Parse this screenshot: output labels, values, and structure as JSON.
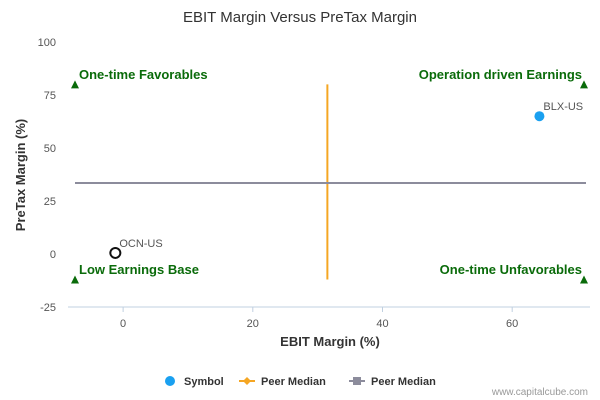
{
  "chart_data": {
    "type": "scatter",
    "title": "EBIT Margin Versus PreTax Margin",
    "xlabel": "EBIT Margin (%)",
    "ylabel": "PreTax Margin (%)",
    "xlim": [
      -8.5,
      72
    ],
    "ylim": [
      -25,
      100
    ],
    "xticks": [
      0,
      20,
      40,
      60
    ],
    "yticks": [
      100,
      75,
      50,
      25,
      0,
      -25
    ],
    "points": [
      {
        "label": "BLX-US",
        "x": 64.2,
        "y": 65,
        "style": "filled",
        "color": "#1aa0f0"
      },
      {
        "label": "OCN-US",
        "x": -1.2,
        "y": 0.5,
        "style": "hollow",
        "color": "#111111"
      }
    ],
    "peer_median_x": 31.5,
    "peer_median_x_range": [
      -12,
      80
    ],
    "peer_median_y": 33.5,
    "peer_median_x_color": "#f5a623",
    "peer_median_y_color": "#8c8c9c",
    "quadrants": {
      "top_left": "One-time Favorables",
      "top_right": "Operation driven Earnings",
      "bottom_left": "Low Earnings Base",
      "bottom_right": "One-time Unfavorables",
      "color": "#0a6b0a"
    },
    "legend": [
      {
        "label": "Symbol",
        "marker": "circle",
        "color": "#1aa0f0"
      },
      {
        "label": "Peer Median",
        "marker": "diamond-line",
        "color": "#f5a623"
      },
      {
        "label": "Peer Median",
        "marker": "square-line",
        "color": "#8c8c9c"
      }
    ],
    "legend_position": "bottom",
    "grid": false
  },
  "credit": "www.capitalcube.com"
}
